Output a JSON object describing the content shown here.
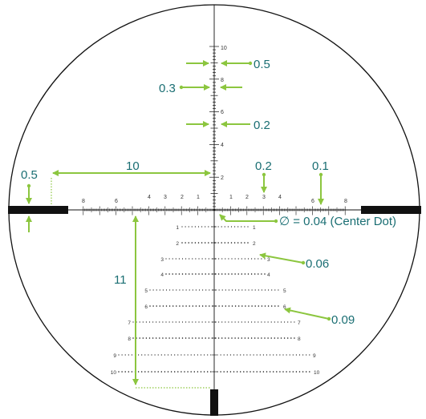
{
  "colors": {
    "background": "#ffffff",
    "reticle": "#111111",
    "callout_text": "#1a6e73",
    "callout_arrow": "#8cc63f"
  },
  "diagram": {
    "vertical_scale_labels": [
      "10",
      "8",
      "6",
      "4",
      "2"
    ],
    "horizontal_left_labels": [
      "8",
      "6",
      "4",
      "3",
      "2",
      "1"
    ],
    "horizontal_right_labels": [
      "1",
      "2",
      "3",
      "4",
      "6",
      "8"
    ],
    "holdover_rows": [
      {
        "left": "1",
        "right": "1"
      },
      {
        "left": "2",
        "right": "2"
      },
      {
        "left": "3",
        "right": "3"
      },
      {
        "left": "4",
        "right": "4"
      },
      {
        "left": "5",
        "right": "5"
      },
      {
        "left": "6",
        "right": "6"
      },
      {
        "left": "7",
        "right": "7"
      },
      {
        "left": "8",
        "right": "8"
      },
      {
        "left": "9",
        "right": "9"
      },
      {
        "left": "10",
        "right": "10"
      }
    ],
    "callouts": {
      "vertical_top_spacing": "0.5",
      "vertical_mid_spacing": "0.3",
      "vertical_low_spacing": "0.2",
      "post_height": "0.5",
      "crosshair_width": "10",
      "horizontal_fine_spacing": "0.2",
      "horizontal_tick_spacing": "0.1",
      "center_dot": "∅ = 0.04 (Center Dot)",
      "dot_size_small": "0.06",
      "dot_size_large": "0.09",
      "drop_length": "11"
    }
  }
}
